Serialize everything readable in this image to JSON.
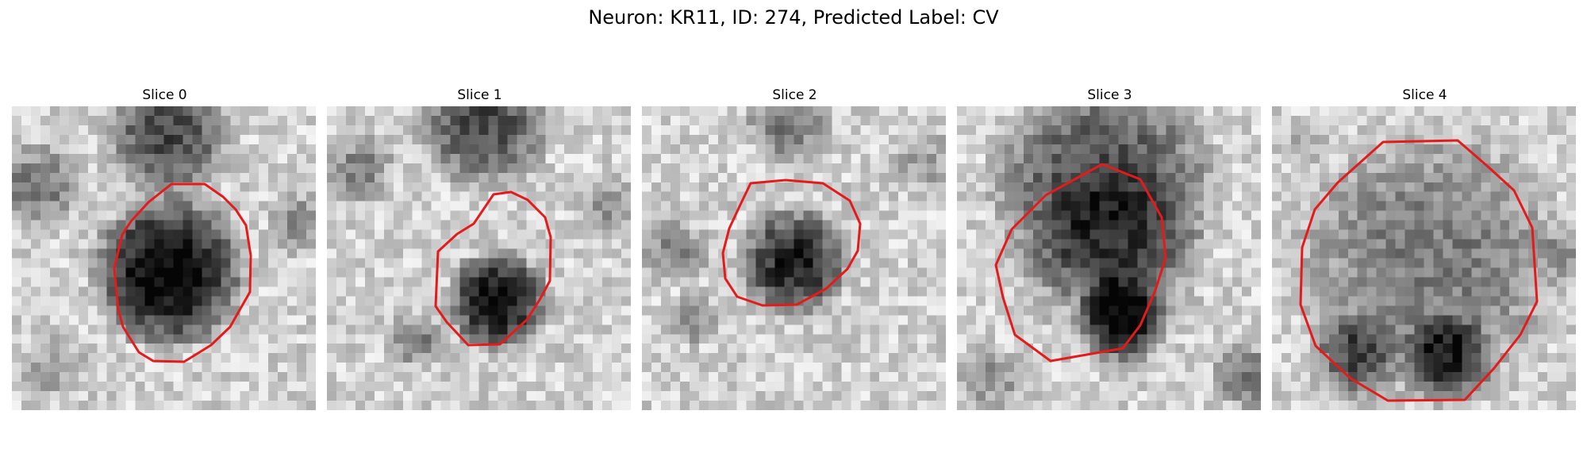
{
  "figure": {
    "suptitle": "Neuron: KR11, ID: 274, Predicted Label: CV",
    "contour_color": "#e31b1b"
  },
  "panels": [
    {
      "title": "Slice 0"
    },
    {
      "title": "Slice 1"
    },
    {
      "title": "Slice 2"
    },
    {
      "title": "Slice 3"
    },
    {
      "title": "Slice 4"
    }
  ]
}
